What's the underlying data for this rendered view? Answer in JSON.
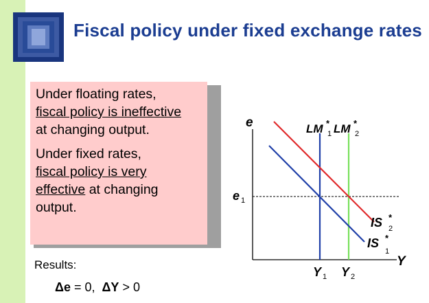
{
  "slide": {
    "title": "Fiscal policy under fixed exchange rates",
    "colors": {
      "title": "#1b3d91",
      "side_bar": "#d8f2b6",
      "box": "#ffcccc"
    }
  },
  "box": {
    "p1_line1": "Under floating rates,",
    "p1_line2_underlined": "fiscal policy is ineffective",
    "p1_line3": "at changing output.",
    "p2_line1": "Under fixed rates,",
    "p2_line2_underlined": "fiscal policy is very",
    "p2_line3_underlined": "effective",
    "p2_line3_rest": " at changing",
    "p2_line4": "output."
  },
  "results": {
    "label": "Results:",
    "delta_e": "Δe",
    "eq1": " = 0,  ",
    "delta_Y": "ΔY",
    "eq2": " > 0"
  },
  "diagram": {
    "axis_y_label": "e",
    "axis_x_label": "Y",
    "e1_label": "e",
    "e1_sub": "1",
    "lm1_label": "LM",
    "lm1_sub": "1",
    "lm2_label": "LM",
    "lm2_sub": "2",
    "is1_label": "IS",
    "is1_sub": "1",
    "is2_label": "IS",
    "is2_sub": "2",
    "y1_label": "Y",
    "y1_sub": "1",
    "y2_label": "Y",
    "y2_sub": "2",
    "star": "*",
    "colors": {
      "lm1": "#1f3fa8",
      "lm2": "#77e05a",
      "is1": "#1f3fa8",
      "is2": "#e0282a"
    }
  }
}
